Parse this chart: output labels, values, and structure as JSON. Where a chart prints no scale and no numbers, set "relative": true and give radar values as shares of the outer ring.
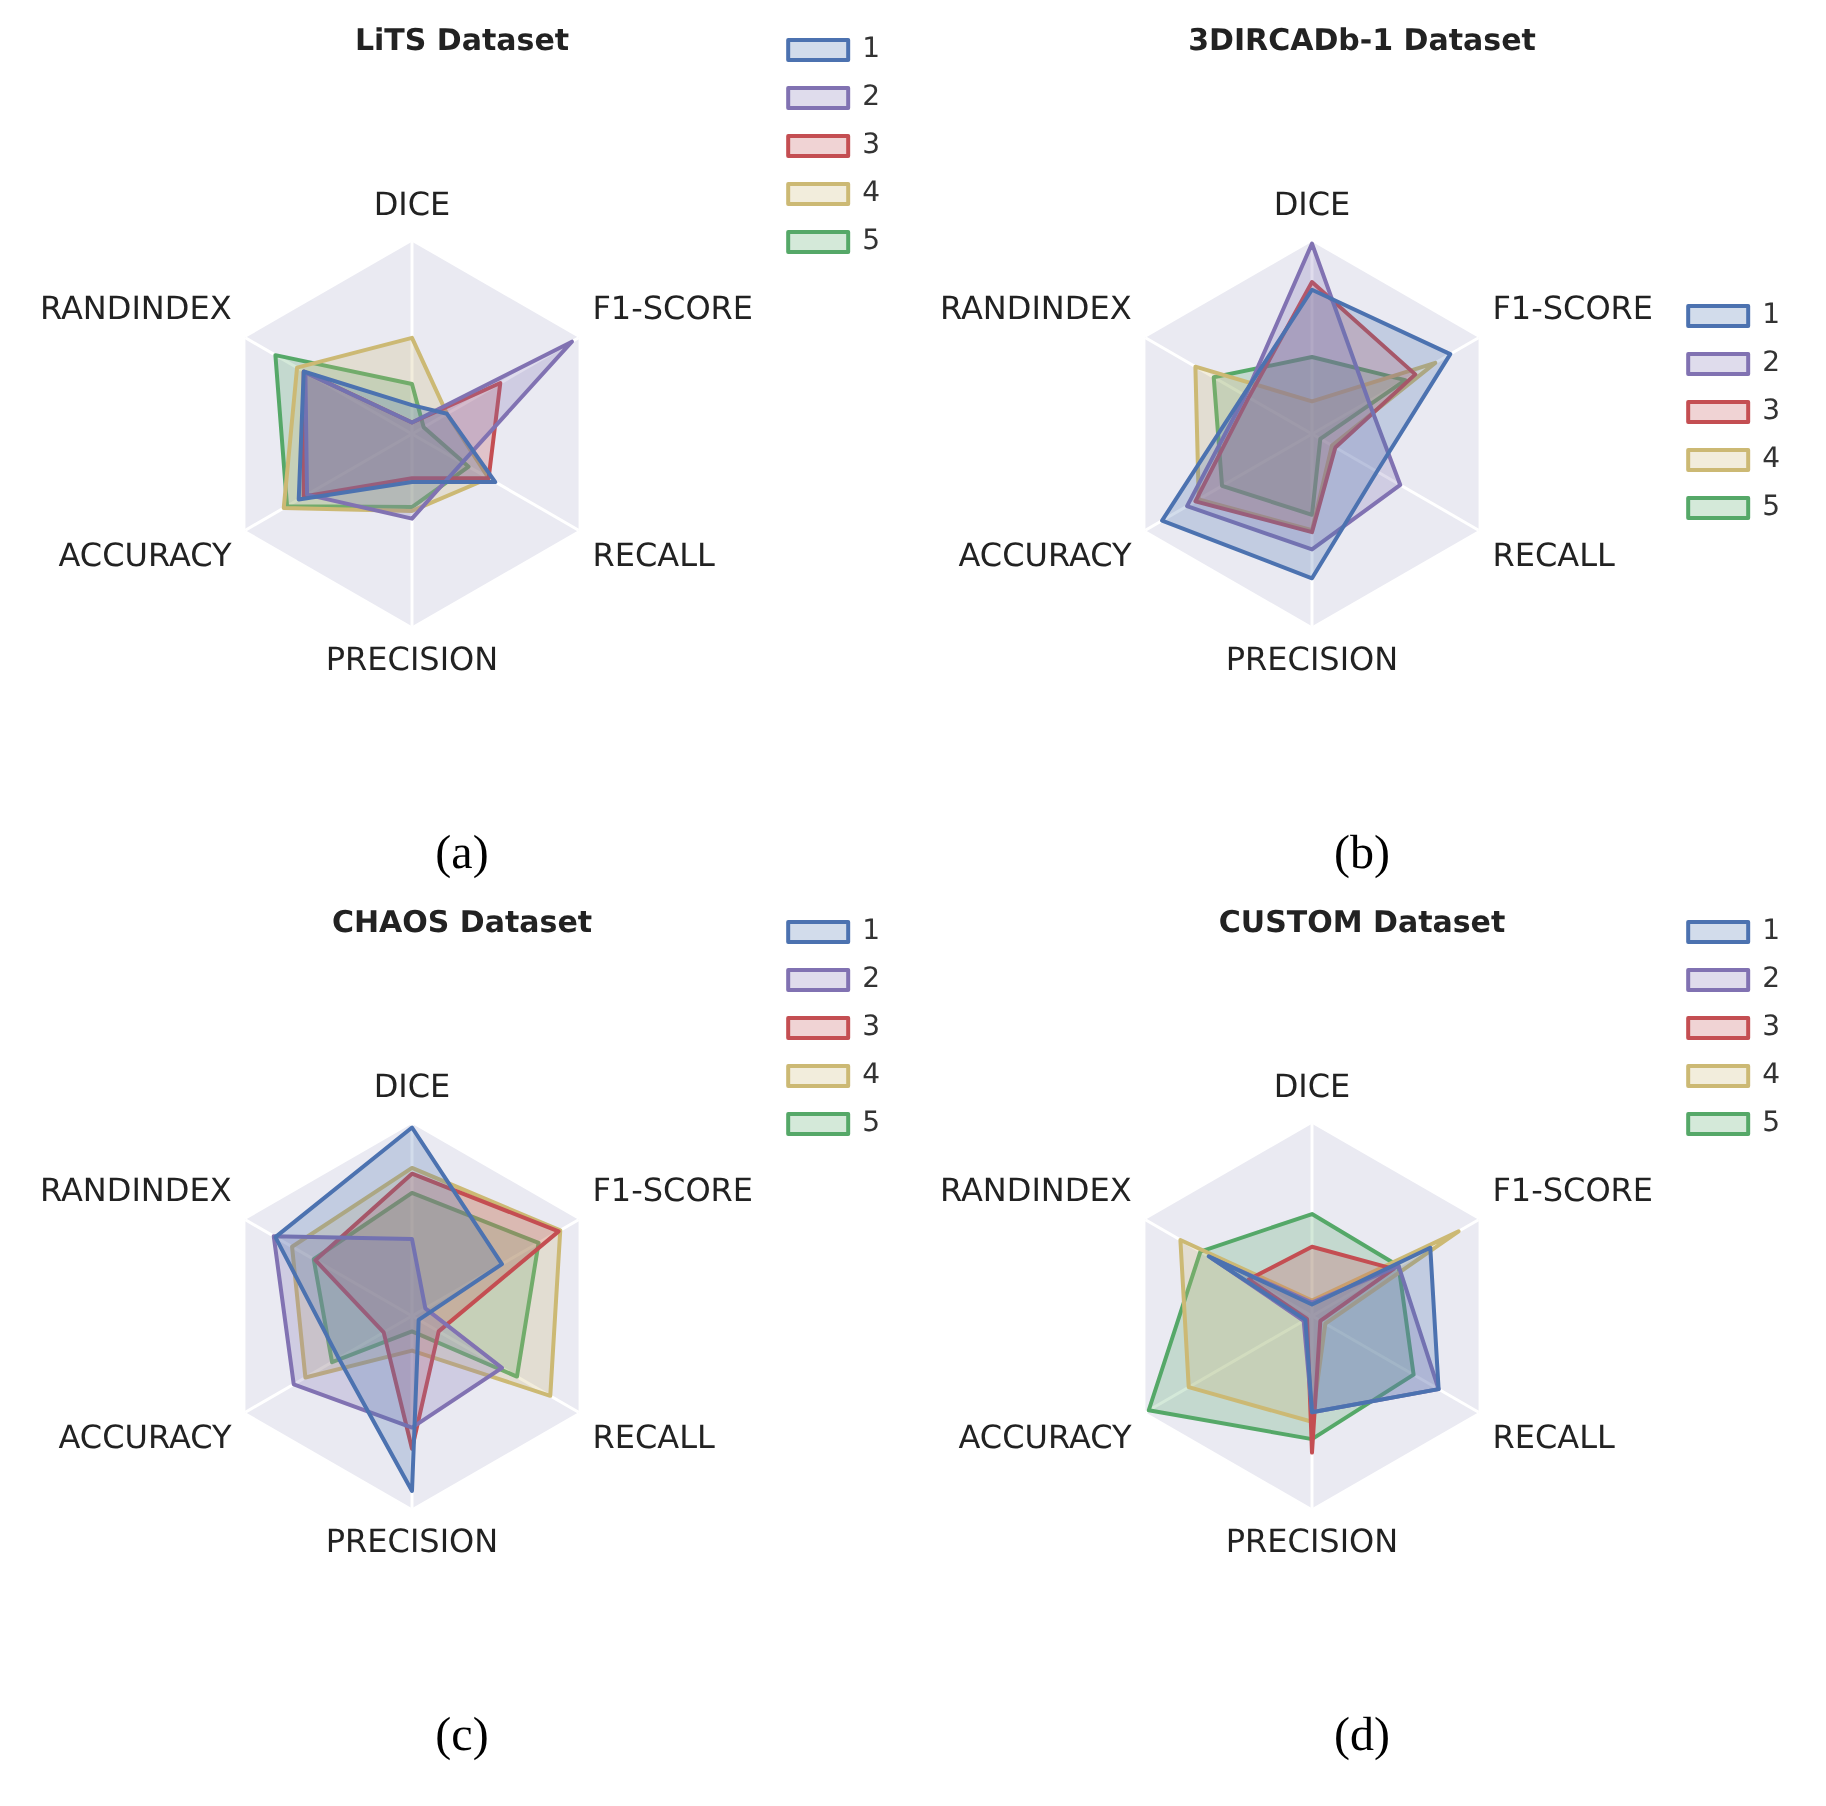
{
  "chart_data": [
    {
      "type": "radar",
      "title": "LiTS Dataset",
      "categories": [
        "DICE",
        "F1-SCORE",
        "RECALL",
        "PRECISION",
        "ACCURACY",
        "RANDINDEX"
      ],
      "relative": true,
      "legend": "top right",
      "annotations": [
        "(a)"
      ],
      "series": [
        {
          "name": "1",
          "color": "#4c72b0",
          "values": [
            0.15,
            0.21,
            0.5,
            0.25,
            0.68,
            0.65
          ]
        },
        {
          "name": "2",
          "color": "#8172b2",
          "values": [
            0.06,
            0.96,
            0.3,
            0.44,
            0.63,
            0.64
          ]
        },
        {
          "name": "3",
          "color": "#c44e52",
          "values": [
            0.06,
            0.53,
            0.46,
            0.23,
            0.65,
            0.65
          ]
        },
        {
          "name": "4",
          "color": "#ccb974",
          "values": [
            0.5,
            0.21,
            0.46,
            0.4,
            0.77,
            0.69
          ]
        },
        {
          "name": "5",
          "color": "#55a868",
          "values": [
            0.26,
            0.07,
            0.34,
            0.38,
            0.75,
            0.82
          ]
        }
      ]
    },
    {
      "type": "radar",
      "title": "3DIRCADb-1 Dataset",
      "categories": [
        "DICE",
        "F1-SCORE",
        "RECALL",
        "PRECISION",
        "ACCURACY",
        "RANDINDEX"
      ],
      "relative": true,
      "legend": "right",
      "annotations": [
        "(b)"
      ],
      "series": [
        {
          "name": "1",
          "color": "#4c72b0",
          "values": [
            0.75,
            0.83,
            0.39,
            0.75,
            0.9,
            0.41
          ]
        },
        {
          "name": "2",
          "color": "#8172b2",
          "values": [
            0.99,
            0.34,
            0.53,
            0.6,
            0.75,
            0.4
          ]
        },
        {
          "name": "3",
          "color": "#c44e52",
          "values": [
            0.79,
            0.62,
            0.14,
            0.51,
            0.7,
            0.38
          ]
        },
        {
          "name": "4",
          "color": "#ccb974",
          "values": [
            0.17,
            0.74,
            0.12,
            0.5,
            0.68,
            0.7
          ]
        },
        {
          "name": "5",
          "color": "#55a868",
          "values": [
            0.4,
            0.56,
            0.05,
            0.42,
            0.54,
            0.59
          ]
        }
      ]
    },
    {
      "type": "radar",
      "title": "CHAOS Dataset",
      "categories": [
        "DICE",
        "F1-SCORE",
        "RECALL",
        "PRECISION",
        "ACCURACY",
        "RANDINDEX"
      ],
      "relative": true,
      "legend": "top right",
      "annotations": [
        "(c)"
      ],
      "series": [
        {
          "name": "1",
          "color": "#4c72b0",
          "values": [
            0.98,
            0.54,
            0.04,
            0.91,
            0.44,
            0.82
          ]
        },
        {
          "name": "2",
          "color": "#8172b2",
          "values": [
            0.4,
            0.08,
            0.54,
            0.58,
            0.71,
            0.83
          ]
        },
        {
          "name": "3",
          "color": "#c44e52",
          "values": [
            0.74,
            0.88,
            0.16,
            0.69,
            0.17,
            0.58
          ]
        },
        {
          "name": "4",
          "color": "#ccb974",
          "values": [
            0.77,
            0.89,
            0.83,
            0.18,
            0.64,
            0.72
          ]
        },
        {
          "name": "5",
          "color": "#55a868",
          "values": [
            0.64,
            0.76,
            0.63,
            0.08,
            0.48,
            0.59
          ]
        }
      ]
    },
    {
      "type": "radar",
      "title": "CUSTOM Dataset",
      "categories": [
        "DICE",
        "F1-SCORE",
        "RECALL",
        "PRECISION",
        "ACCURACY",
        "RANDINDEX"
      ],
      "relative": true,
      "legend": "top right",
      "annotations": [
        "(d)"
      ],
      "series": [
        {
          "name": "1",
          "color": "#4c72b0",
          "values": [
            0.06,
            0.71,
            0.76,
            0.5,
            0.04,
            0.62
          ]
        },
        {
          "name": "2",
          "color": "#8172b2",
          "values": [
            0.07,
            0.52,
            0.76,
            0.5,
            0.05,
            0.6
          ]
        },
        {
          "name": "3",
          "color": "#c44e52",
          "values": [
            0.36,
            0.49,
            0.05,
            0.71,
            0.03,
            0.38
          ]
        },
        {
          "name": "4",
          "color": "#ccb974",
          "values": [
            0.08,
            0.88,
            0.08,
            0.55,
            0.74,
            0.79
          ]
        },
        {
          "name": "5",
          "color": "#55a868",
          "values": [
            0.53,
            0.52,
            0.61,
            0.64,
            0.98,
            0.67
          ]
        }
      ]
    }
  ]
}
